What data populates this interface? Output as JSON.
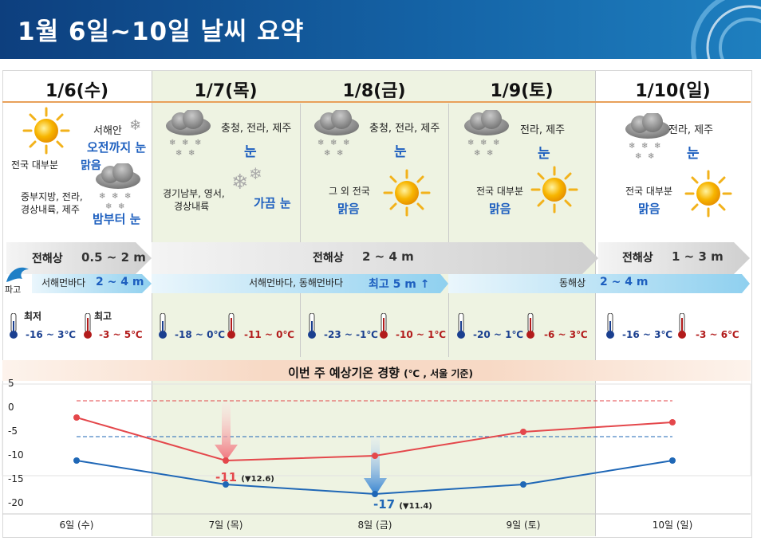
{
  "title": "1월 6일~10일 날씨 요약",
  "days": [
    {
      "label": "1/6(수)"
    },
    {
      "label": "1/7(목)"
    },
    {
      "label": "1/8(금)"
    },
    {
      "label": "1/9(토)"
    },
    {
      "label": "1/10(일)"
    }
  ],
  "weather": {
    "d6": {
      "a_region": "서해안",
      "a_value": "오전까지 눈",
      "b_region": "전국 대부분",
      "b_value": "맑음",
      "c_region_1": "중부지방, 전라,",
      "c_region_2": "경상내륙, 제주",
      "c_value": "밤부터 눈"
    },
    "d7": {
      "a_region": "충청, 전라, 제주",
      "a_value": "눈",
      "b_region_1": "경기남부, 영서,",
      "b_region_2": "경상내륙",
      "b_value": "가끔 눈"
    },
    "d8": {
      "a_region": "충청, 전라, 제주",
      "a_value": "눈",
      "b_region": "그 외 전국",
      "b_value": "맑음"
    },
    "d9": {
      "a_region": "전라, 제주",
      "a_value": "눈",
      "b_region": "전국 대부분",
      "b_value": "맑음"
    },
    "d10": {
      "a_region": "전라, 제주",
      "a_value": "눈",
      "b_region": "전국 대부분",
      "b_value": "맑음"
    }
  },
  "waves": {
    "row1": [
      {
        "label": "전해상",
        "value": "0.5 ~ 2 m"
      },
      {
        "label": "전해상",
        "value": "2 ~ 4 m"
      },
      {
        "label": "전해상",
        "value": "1 ~ 3 m"
      }
    ],
    "row2": [
      {
        "label": "서해먼바다",
        "value": "2 ~ 4 m"
      },
      {
        "label": "서해먼바다, 동해먼바다",
        "value": "최고 5 m ↑"
      },
      {
        "label": "동해상",
        "value": "2 ~ 4 m"
      }
    ],
    "wave_icon_label": "파고"
  },
  "temps": {
    "min_label": "최저",
    "max_label": "최고",
    "items": [
      {
        "min": "-16 ~ 3℃",
        "max": "-3 ~ 5℃"
      },
      {
        "min": "-18 ~ 0℃",
        "max": "-11 ~ 0℃"
      },
      {
        "min": "-23 ~ -1℃",
        "max": "-10 ~ 1℃"
      },
      {
        "min": "-20 ~ 1℃",
        "max": "-6 ~ 3℃"
      },
      {
        "min": "-16 ~ 3℃",
        "max": "-3 ~ 6℃"
      }
    ]
  },
  "trend": {
    "title": "이번 주 예상기온 경향",
    "unit": "(℃ , 서울 기준)"
  },
  "colors": {
    "max_line": "#e4474b",
    "min_line": "#1f67b6",
    "accent_blue": "#1d5fbf",
    "header": "#1565a8"
  },
  "chart_data": {
    "type": "line",
    "title": "이번 주 예상기온 경향 (℃ , 서울 기준)",
    "categories": [
      "6일 (수)",
      "7일 (목)",
      "8일 (금)",
      "9일 (토)",
      "10일 (일)"
    ],
    "yticks": [
      "5",
      "0",
      "-5",
      "-10",
      "-15",
      "-20"
    ],
    "ylim": [
      -20,
      5
    ],
    "series": [
      {
        "values": [
          -2,
          -11,
          -10,
          -5,
          -3
        ],
        "color": "#e4474b"
      },
      {
        "values": [
          -11,
          -16,
          -18,
          -16,
          -11
        ],
        "color": "#1f67b6"
      }
    ],
    "normal_max": 1.5,
    "normal_min": -6,
    "annotations": [
      {
        "value": "-11",
        "change": "(▼12.6)"
      },
      {
        "value": "-17",
        "change": "(▼11.4)"
      }
    ]
  }
}
